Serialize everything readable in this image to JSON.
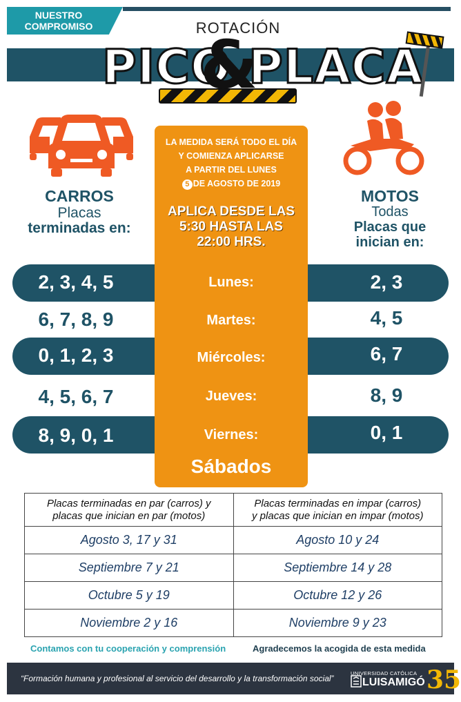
{
  "header": {
    "badge_line1": "NUESTRO",
    "badge_line2": "COMPROMISO",
    "subtitle": "ROTACIÓN",
    "title_left": "PICO",
    "title_amp": "&",
    "title_right": "PLACA"
  },
  "info": {
    "line1": "LA MEDIDA SERÁ TODO EL DÍA",
    "line2": "Y COMIENZA APLICARSE",
    "line3": "A PARTIR DEL LUNES",
    "day_number": "5",
    "line4_rest": "DE AGOSTO DE 2019",
    "aplica_line1": "APLICA DESDE LAS",
    "aplica_line2": "5:30 HASTA LAS",
    "aplica_line3": "22:00 HRS."
  },
  "carros": {
    "title": "CARROS",
    "sub_line1": "Placas",
    "sub_line2": "terminadas en:"
  },
  "motos": {
    "title": "MOTOS",
    "sub_line1": "Todas",
    "sub_line2": "Placas que",
    "sub_line3": "inician en:"
  },
  "schedule": [
    {
      "cars": "2, 3, 4, 5",
      "day": "Lunes:",
      "motos": "2, 3"
    },
    {
      "cars": "6, 7, 8, 9",
      "day": "Martes:",
      "motos": "4, 5"
    },
    {
      "cars": "0, 1, 2, 3",
      "day": "Miércoles:",
      "motos": "6, 7"
    },
    {
      "cars": "4, 5, 6, 7",
      "day": "Jueves:",
      "motos": "8, 9"
    },
    {
      "cars": "8, 9, 0, 1",
      "day": "Viernes:",
      "motos": "0, 1"
    }
  ],
  "sabados": "Sábados",
  "table": {
    "head_left_line1": "Placas terminadas en par (carros) y",
    "head_left_line2": "placas que inician en par (motos)",
    "head_right_line1": "Placas terminadas en impar (carros)",
    "head_right_line2": "y placas que inician en impar (motos)",
    "rows": [
      {
        "left": "Agosto 3, 17 y 31",
        "right": "Agosto 10 y 24"
      },
      {
        "left": "Septiembre 7 y 21",
        "right": "Septiembre 14 y 28"
      },
      {
        "left": "Octubre 5 y 19",
        "right": "Octubre 12 y 26"
      },
      {
        "left": "Noviembre 2 y 16",
        "right": "Noviembre 9 y 23"
      }
    ]
  },
  "footer": {
    "thanks_left": "Contamos con tu cooperación y comprensión",
    "thanks_right": "Agradecemos la acogida de esta medida",
    "motto": "“Formación humana y profesional al servicio del desarrollo y la transformación social”",
    "logo_top": "UNIVERSIDAD CATÓLICA",
    "logo_name": "LUISAMIGÓ",
    "logo_years": "35"
  },
  "colors": {
    "teal_dark": "#1f5366",
    "orange": "#ef9313",
    "teal_light": "#1e9aa8",
    "icon_orange": "#ef5a24"
  },
  "icons": [
    "car-icon",
    "motorcycle-icon",
    "road-sign-icon"
  ]
}
